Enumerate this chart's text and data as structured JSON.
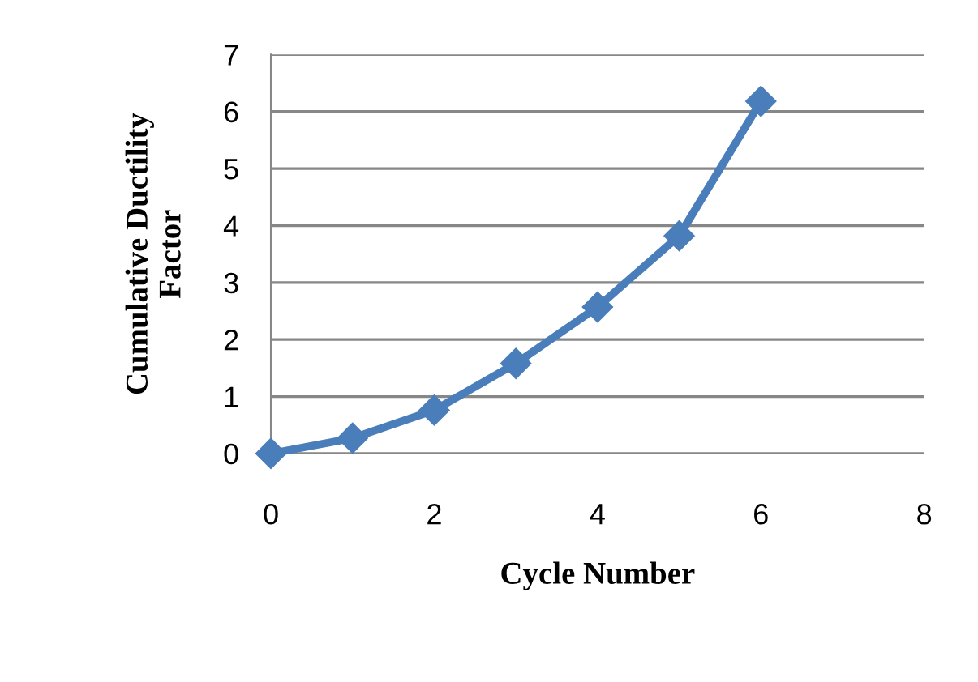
{
  "chart_data": {
    "type": "line",
    "xlabel": "Cycle Number",
    "ylabel": "Cumulative Ductility\nFactor",
    "x": [
      0,
      1,
      2,
      3,
      4,
      5,
      6
    ],
    "series": [
      {
        "color": "#4a7ebb",
        "values": [
          0,
          0.27,
          0.76,
          1.58,
          2.57,
          3.82,
          6.18
        ]
      }
    ],
    "xlim": [
      0,
      8
    ],
    "xticks": [
      0,
      2,
      4,
      6,
      8
    ],
    "ylim": [
      0,
      7
    ],
    "yticks": [
      0,
      1,
      2,
      3,
      4,
      5,
      6,
      7
    ],
    "grid": "y",
    "legend": false,
    "marker": "diamond",
    "line_style": "solid"
  }
}
